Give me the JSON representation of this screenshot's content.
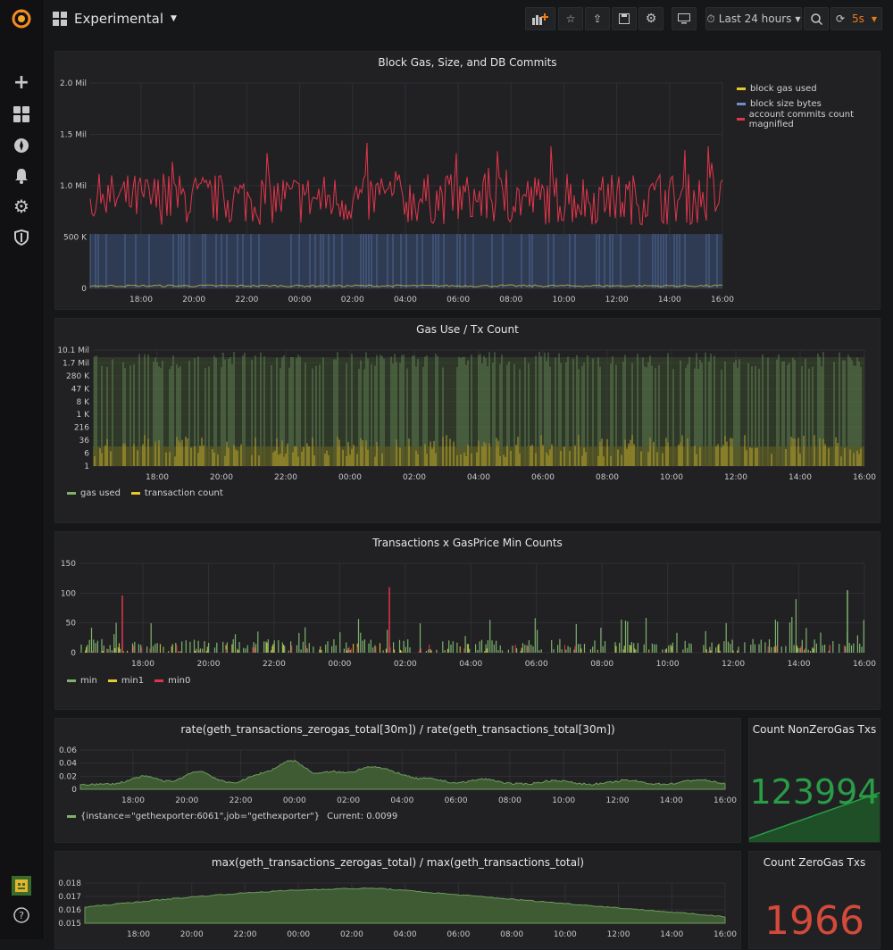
{
  "sidebar": {
    "icons": [
      "grafana-logo-icon",
      "plus-icon",
      "dashboards-icon",
      "explore-icon",
      "alert-bell-icon",
      "gear-icon",
      "shield-icon"
    ],
    "bottom": [
      "avatar",
      "help-icon"
    ]
  },
  "header": {
    "title": "Experimental",
    "time_range": "Last 24 hours",
    "refresh": "5s"
  },
  "panels": {
    "p1": {
      "title": "Block Gas, Size, and DB Commits",
      "legend": [
        "block gas used",
        "block size bytes",
        "account commits count magnified"
      ],
      "yticks": [
        "2.0 Mil",
        "1.5 Mil",
        "1.0 Mil",
        "500 K",
        "0"
      ],
      "xticks": [
        "18:00",
        "20:00",
        "22:00",
        "00:00",
        "02:00",
        "04:00",
        "06:00",
        "08:00",
        "10:00",
        "12:00",
        "14:00",
        "16:00"
      ]
    },
    "p2": {
      "title": "Gas Use / Tx Count",
      "legend": [
        "gas used",
        "transaction count"
      ],
      "yticks": [
        "10.1 Mil",
        "1.7 Mil",
        "280 K",
        "47 K",
        "8 K",
        "1 K",
        "216",
        "36",
        "6",
        "1"
      ],
      "xticks": [
        "18:00",
        "20:00",
        "22:00",
        "00:00",
        "02:00",
        "04:00",
        "06:00",
        "08:00",
        "10:00",
        "12:00",
        "14:00",
        "16:00"
      ]
    },
    "p3": {
      "title": "Transactions x GasPrice Min Counts",
      "legend": [
        "min",
        "min1",
        "min0"
      ],
      "yticks": [
        "150",
        "100",
        "50",
        "0"
      ],
      "xticks": [
        "18:00",
        "20:00",
        "22:00",
        "00:00",
        "02:00",
        "04:00",
        "06:00",
        "08:00",
        "10:00",
        "12:00",
        "14:00",
        "16:00"
      ]
    },
    "p4": {
      "title": "rate(geth_transactions_zerogas_total[30m]) / rate(geth_transactions_total[30m])",
      "legend": "{instance=\"gethexporter:6061\",job=\"gethexporter\"}",
      "current": "Current: 0.0099",
      "yticks": [
        "0.06",
        "0.04",
        "0.02",
        "0"
      ],
      "xticks": [
        "18:00",
        "20:00",
        "22:00",
        "00:00",
        "02:00",
        "04:00",
        "06:00",
        "08:00",
        "10:00",
        "12:00",
        "14:00",
        "16:00"
      ]
    },
    "p5": {
      "title": "Count NonZeroGas Txs",
      "value": "123994"
    },
    "p6": {
      "title": "max(geth_transactions_zerogas_total) / max(geth_transactions_total)",
      "yticks": [
        "0.018",
        "0.017",
        "0.016",
        "0.015"
      ],
      "xticks": [
        "18:00",
        "20:00",
        "22:00",
        "00:00",
        "02:00",
        "04:00",
        "06:00",
        "08:00",
        "10:00",
        "12:00",
        "14:00",
        "16:00"
      ]
    },
    "p7": {
      "title": "Count ZeroGas Txs",
      "value": "1966"
    }
  },
  "colors": {
    "yellow": "#e5c82e",
    "blue": "#6d8fc9",
    "red": "#e0364a",
    "green": "#7eb26d",
    "stat_green": "#299c46",
    "stat_red": "#d44a3a",
    "accent_orange": "#eb7b18"
  },
  "chart_data": [
    {
      "type": "line",
      "title": "Block Gas, Size, and DB Commits",
      "x": [
        "18:00",
        "20:00",
        "22:00",
        "00:00",
        "02:00",
        "04:00",
        "06:00",
        "08:00",
        "10:00",
        "12:00",
        "14:00",
        "16:00"
      ],
      "ylim": [
        0,
        2000000
      ],
      "series": [
        {
          "name": "block gas used",
          "values": [
            20000,
            30000,
            25000,
            20000,
            30000,
            25000,
            20000,
            30000,
            25000,
            20000,
            30000,
            25000
          ]
        },
        {
          "name": "block size bytes",
          "values": [
            530000,
            530000,
            530000,
            530000,
            530000,
            530000,
            530000,
            530000,
            530000,
            530000,
            530000,
            530000
          ]
        },
        {
          "name": "account commits count magnified",
          "values": [
            850000,
            900000,
            900000,
            800000,
            850000,
            850000,
            900000,
            850000,
            850000,
            850000,
            900000,
            800000
          ]
        }
      ]
    },
    {
      "type": "bar",
      "title": "Gas Use / Tx Count",
      "scale": "log",
      "x": [
        "18:00",
        "20:00",
        "22:00",
        "00:00",
        "02:00",
        "04:00",
        "06:00",
        "08:00",
        "10:00",
        "12:00",
        "14:00",
        "16:00"
      ],
      "series": [
        {
          "name": "gas used",
          "values": [
            10100000,
            10100000,
            10100000,
            10100000,
            10100000,
            10100000,
            10100000,
            10100000,
            10100000,
            10100000,
            10100000,
            10100000
          ]
        },
        {
          "name": "transaction count",
          "values": [
            6,
            6,
            6,
            6,
            6,
            6,
            6,
            6,
            6,
            6,
            6,
            6
          ]
        }
      ]
    },
    {
      "type": "bar",
      "title": "Transactions x GasPrice Min Counts",
      "x": [
        "18:00",
        "20:00",
        "22:00",
        "00:00",
        "02:00",
        "04:00",
        "06:00",
        "08:00",
        "10:00",
        "12:00",
        "14:00",
        "16:00"
      ],
      "ylim": [
        0,
        150
      ],
      "series": [
        {
          "name": "min",
          "values": [
            15,
            20,
            18,
            20,
            15,
            18,
            20,
            20,
            18,
            20,
            25,
            40
          ]
        },
        {
          "name": "min1",
          "values": [
            5,
            5,
            5,
            5,
            5,
            5,
            5,
            5,
            5,
            5,
            5,
            5
          ]
        },
        {
          "name": "min0",
          "values": [
            3,
            3,
            3,
            3,
            3,
            3,
            3,
            3,
            3,
            3,
            3,
            3
          ]
        }
      ]
    },
    {
      "type": "area",
      "title": "rate(geth_transactions_zerogas_total[30m]) / rate(geth_transactions_total[30m])",
      "x": [
        "18:00",
        "20:00",
        "22:00",
        "00:00",
        "02:00",
        "04:00",
        "06:00",
        "08:00",
        "10:00",
        "12:00",
        "14:00",
        "16:00"
      ],
      "ylim": [
        0,
        0.06
      ],
      "series": [
        {
          "name": "{instance=\"gethexporter:6061\",job=\"gethexporter\"}",
          "values": [
            0.012,
            0.018,
            0.015,
            0.035,
            0.022,
            0.008,
            0.012,
            0.01,
            0.008,
            0.009,
            0.01,
            0.0099
          ]
        }
      ]
    },
    {
      "type": "area",
      "title": "max(geth_transactions_zerogas_total) / max(geth_transactions_total)",
      "x": [
        "18:00",
        "20:00",
        "22:00",
        "00:00",
        "02:00",
        "04:00",
        "06:00",
        "08:00",
        "10:00",
        "12:00",
        "14:00",
        "16:00"
      ],
      "ylim": [
        0.015,
        0.018
      ],
      "series": [
        {
          "name": "",
          "values": [
            0.0162,
            0.0168,
            0.017,
            0.0172,
            0.0174,
            0.0175,
            0.0172,
            0.0169,
            0.0166,
            0.0162,
            0.0158,
            0.0155
          ]
        }
      ]
    }
  ]
}
